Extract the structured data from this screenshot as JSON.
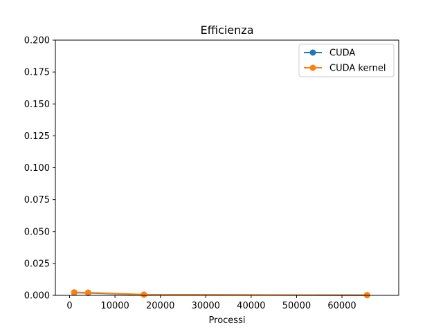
{
  "chart_data": {
    "type": "line",
    "title": "Efficienza",
    "xlabel": "Processi",
    "ylabel": "",
    "xlim": [
      -3130,
      72500
    ],
    "ylim": [
      0,
      0.2
    ],
    "xticks": [
      0,
      10000,
      20000,
      30000,
      40000,
      50000,
      60000
    ],
    "xtick_labels": [
      "0",
      "10000",
      "20000",
      "30000",
      "40000",
      "50000",
      "60000"
    ],
    "yticks": [
      0,
      0.025,
      0.05,
      0.075,
      0.1,
      0.125,
      0.15,
      0.175,
      0.2
    ],
    "ytick_labels": [
      "0.000",
      "0.025",
      "0.050",
      "0.075",
      "0.100",
      "0.125",
      "0.150",
      "0.175",
      "0.200"
    ],
    "grid": false,
    "legend_position": "top-right",
    "series": [
      {
        "name": "CUDA",
        "color": "#1f77b4",
        "x": [
          1024,
          4096,
          16384,
          65536
        ],
        "y": [
          0.0021,
          0.0019,
          0.0005,
          0.00012
        ]
      },
      {
        "name": "CUDA kernel",
        "color": "#ff7f0e",
        "x": [
          1024,
          4096,
          16384,
          65536
        ],
        "y": [
          0.0024,
          0.0022,
          0.0006,
          0.00015
        ]
      }
    ]
  }
}
